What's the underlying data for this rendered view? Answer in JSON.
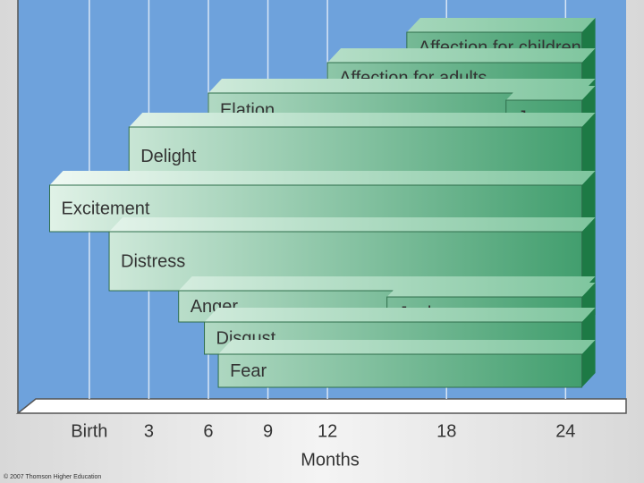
{
  "chart_data": {
    "type": "range-bar",
    "categories": [
      "Affection for children",
      "Affection for adults",
      "Elation",
      "Joy",
      "Delight",
      "Excitement",
      "Distress",
      "Anger",
      "Jealousy",
      "Disgust",
      "Fear"
    ],
    "starts": [
      16,
      12,
      6,
      21,
      2,
      -2,
      1,
      4.5,
      15,
      5.8,
      6.5
    ],
    "ends": [
      25.5,
      25.5,
      25.5,
      25.5,
      25.5,
      25.5,
      25.5,
      25.5,
      25.5,
      25.5,
      25.5
    ],
    "color": "#3a9a68",
    "xlim": [
      -3.6,
      26.6
    ],
    "xticks": [
      {
        "value": 0,
        "label": "Birth"
      },
      3,
      6,
      9,
      12,
      18,
      24
    ],
    "xlabel": "Months",
    "grid": true,
    "footnote": "© 2007 Thomson Higher Education"
  }
}
